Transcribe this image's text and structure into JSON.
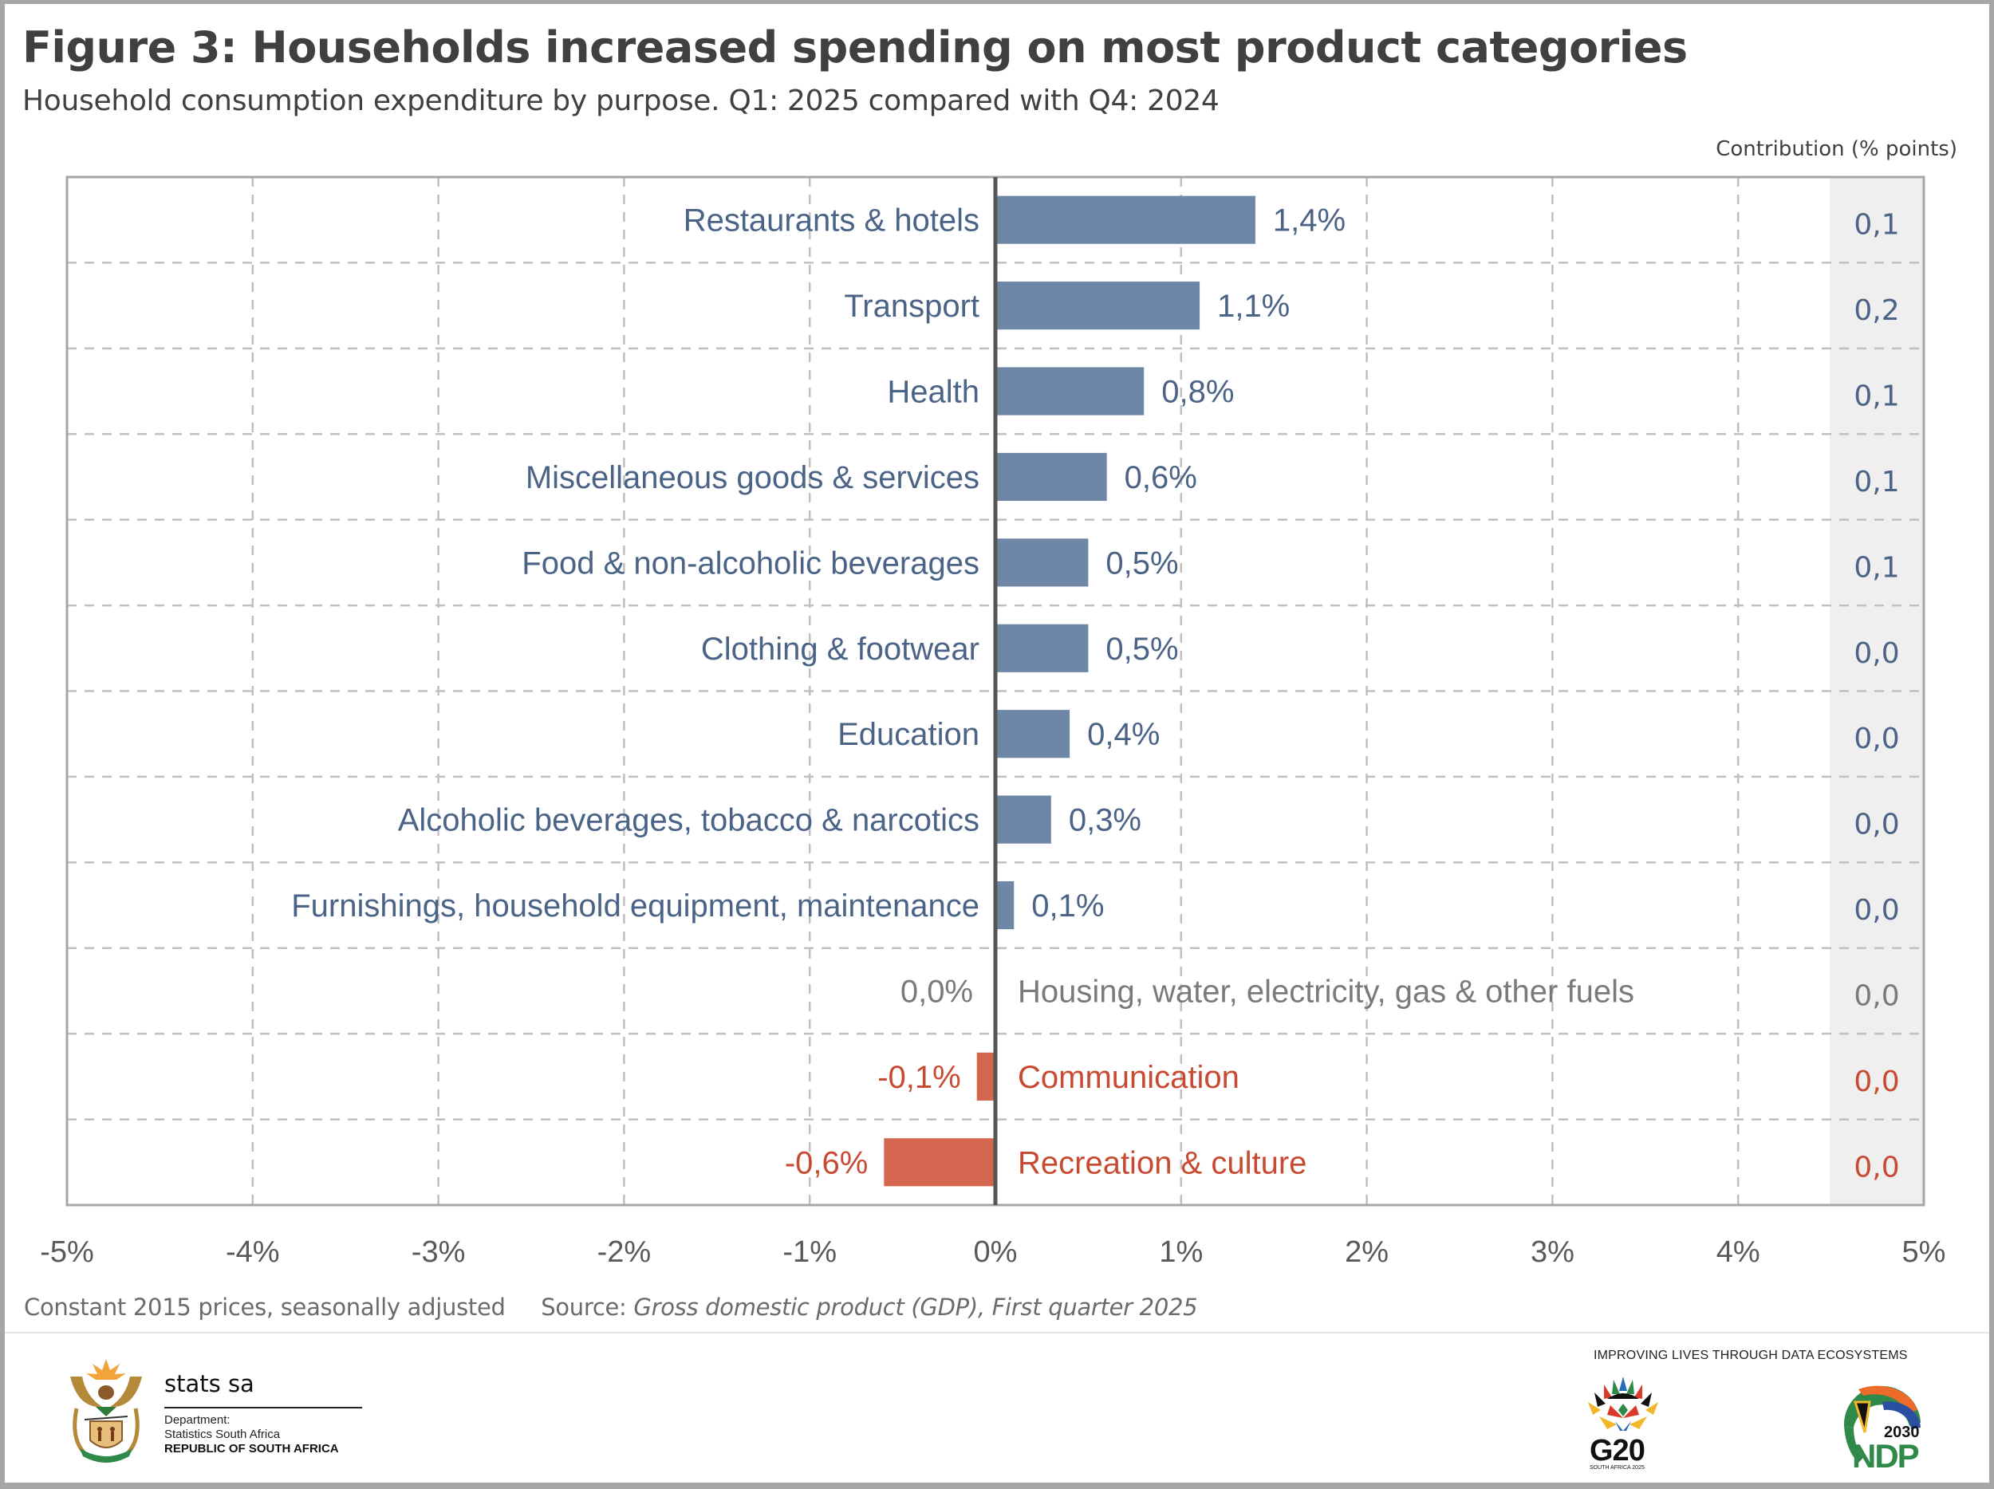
{
  "header": {
    "title": "Figure 3: Households increased spending on most product categories",
    "subtitle": "Household consumption expenditure by purpose. Q1: 2025 compared with Q4: 2024",
    "contribution_header": "Contribution (% points)"
  },
  "colors": {
    "positive_bar": "#6e87a6",
    "positive_text": "#4a6386",
    "negative_bar": "#d4654f",
    "negative_text": "#c94a32",
    "neutral_text": "#7a7a7a",
    "gridline": "#c0c0c0",
    "axis": "#555555",
    "contrib_column_bg": "#efefef"
  },
  "chart_data": {
    "type": "bar",
    "orientation": "horizontal",
    "title": "Figure 3: Households increased spending on most product categories",
    "subtitle": "Household consumption expenditure by purpose. Q1: 2025 compared with Q4: 2024",
    "xlabel": "",
    "ylabel": "",
    "xlim": [
      -5,
      5
    ],
    "x_ticks": [
      "-5%",
      "-4%",
      "-3%",
      "-2%",
      "-1%",
      "0%",
      "1%",
      "2%",
      "3%",
      "4%",
      "5%"
    ],
    "x_tick_values": [
      -5,
      -4,
      -3,
      -2,
      -1,
      0,
      1,
      2,
      3,
      4,
      5
    ],
    "grid": true,
    "legend": "none",
    "categories": [
      "Restaurants & hotels",
      "Transport",
      "Health",
      "Miscellaneous goods & services",
      "Food & non-alcoholic beverages",
      "Clothing & footwear",
      "Education",
      "Alcoholic beverages, tobacco & narcotics",
      "Furnishings, household equipment, maintenance",
      "Housing, water, electricity, gas & other fuels",
      "Communication",
      "Recreation & culture"
    ],
    "values": [
      1.4,
      1.1,
      0.8,
      0.6,
      0.5,
      0.5,
      0.4,
      0.3,
      0.1,
      0.0,
      -0.1,
      -0.6
    ],
    "value_labels": [
      "1,4%",
      "1,1%",
      "0,8%",
      "0,6%",
      "0,5%",
      "0,5%",
      "0,4%",
      "0,3%",
      "0,1%",
      "0,0%",
      "-0,1%",
      "-0,6%"
    ],
    "contribution_header": "Contribution (% points)",
    "contributions": [
      "0,1",
      "0,2",
      "0,1",
      "0,1",
      "0,1",
      "0,0",
      "0,0",
      "0,0",
      "0,0",
      "0,0",
      "0,0",
      "0,0"
    ]
  },
  "footer": {
    "note": "Constant 2015 prices, seasonally adjusted",
    "source_label": "Source:",
    "source_title": "Gross domestic product (GDP), First quarter 2025"
  },
  "logos": {
    "statssa_name": "stats sa",
    "statssa_dept_1": "Department:",
    "statssa_dept_2": "Statistics South Africa",
    "statssa_country": "REPUBLIC OF SOUTH AFRICA",
    "tagline": "IMPROVING LIVES THROUGH DATA ECOSYSTEMS",
    "g20_text": "G20",
    "g20_sub": "SOUTH AFRICA 2025",
    "ndp_year": "2030",
    "ndp_text": "NDP"
  }
}
